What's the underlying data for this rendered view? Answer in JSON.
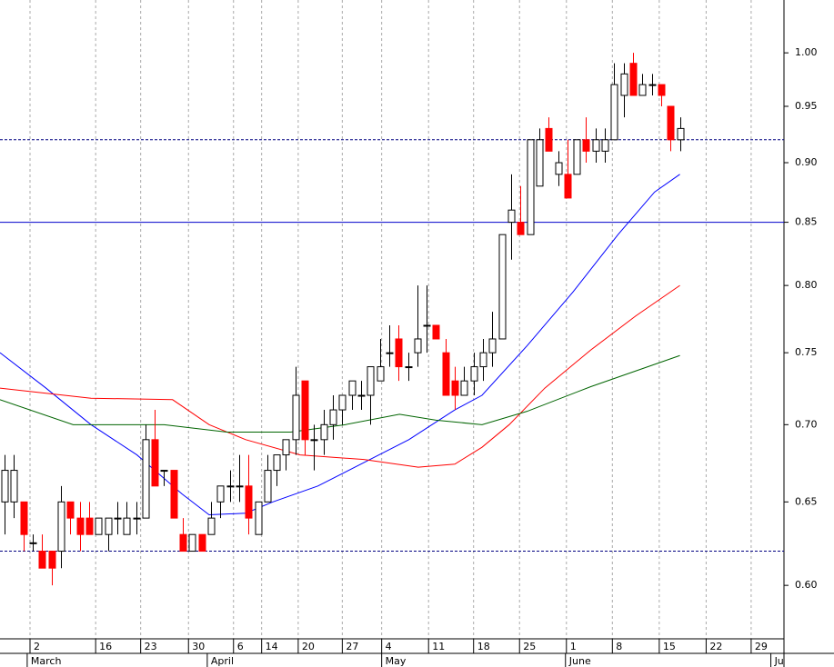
{
  "chart_data": {
    "type": "candlestick",
    "log_scale": true,
    "grid": true,
    "up_color": "#ffffff",
    "down_color": "#ff0000",
    "ylim": [
      0.57,
      1.052
    ],
    "yticks": [
      {
        "value": 0.6,
        "label": "0.60"
      },
      {
        "value": 0.65,
        "label": "0.65"
      },
      {
        "value": 0.7,
        "label": "0.70"
      },
      {
        "value": 0.75,
        "label": "0.75"
      },
      {
        "value": 0.8,
        "label": "0.80"
      },
      {
        "value": 0.85,
        "label": "0.85"
      },
      {
        "value": 0.9,
        "label": "0.90"
      },
      {
        "value": 0.95,
        "label": "0.95"
      },
      {
        "value": 1.0,
        "label": "1.00"
      }
    ],
    "xlim": [
      -0.5,
      83.1
    ],
    "xticks": [
      {
        "value": 2.7,
        "label": "2"
      },
      {
        "value": 9.7,
        "label": "16"
      },
      {
        "value": 14.5,
        "label": "23"
      },
      {
        "value": 19.6,
        "label": "30"
      },
      {
        "value": 24.4,
        "label": "6"
      },
      {
        "value": 27.4,
        "label": "14"
      },
      {
        "value": 31.3,
        "label": "20"
      },
      {
        "value": 36,
        "label": "27"
      },
      {
        "value": 40.2,
        "label": "4"
      },
      {
        "value": 45.2,
        "label": "11"
      },
      {
        "value": 50,
        "label": "18"
      },
      {
        "value": 54.9,
        "label": "25"
      },
      {
        "value": 59.9,
        "label": "1"
      },
      {
        "value": 64.8,
        "label": "8"
      },
      {
        "value": 69.8,
        "label": "15"
      },
      {
        "value": 74.8,
        "label": "22"
      },
      {
        "value": 79.6,
        "label": "29"
      }
    ],
    "month_ticks": [
      {
        "value": 2.4,
        "label": "March"
      },
      {
        "value": 21.6,
        "label": "April"
      },
      {
        "value": 40.2,
        "label": "May"
      },
      {
        "value": 59.8,
        "label": "June"
      },
      {
        "value": 81.7,
        "label": "Ju"
      }
    ],
    "open": [
      0.65,
      0.65,
      0.65,
      0.625,
      0.62,
      0.62,
      0.62,
      0.65,
      0.64,
      0.64,
      0.63,
      0.63,
      0.64,
      0.63,
      0.64,
      0.64,
      0.69,
      0.67,
      0.67,
      0.63,
      0.62,
      0.63,
      0.63,
      0.65,
      0.66,
      0.66,
      0.66,
      0.63,
      0.65,
      0.67,
      0.68,
      0.69,
      0.73,
      0.69,
      0.69,
      0.7,
      0.71,
      0.72,
      0.72,
      0.72,
      0.73,
      0.75,
      0.76,
      0.74,
      0.75,
      0.77,
      0.77,
      0.75,
      0.73,
      0.72,
      0.73,
      0.74,
      0.75,
      0.76,
      0.85,
      0.85,
      0.84,
      0.88,
      0.93,
      0.89,
      0.89,
      0.89,
      0.92,
      0.91,
      0.91,
      0.92,
      0.96,
      0.99,
      0.96,
      0.97,
      0.97,
      0.95,
      0.92
    ],
    "high": [
      0.68,
      0.68,
      0.65,
      0.63,
      0.63,
      0.62,
      0.66,
      0.65,
      0.65,
      0.65,
      0.64,
      0.64,
      0.65,
      0.65,
      0.65,
      0.7,
      0.71,
      0.67,
      0.67,
      0.64,
      0.63,
      0.63,
      0.65,
      0.66,
      0.67,
      0.68,
      0.68,
      0.65,
      0.68,
      0.68,
      0.69,
      0.74,
      0.73,
      0.7,
      0.71,
      0.72,
      0.72,
      0.73,
      0.73,
      0.74,
      0.76,
      0.77,
      0.77,
      0.75,
      0.8,
      0.8,
      0.77,
      0.76,
      0.74,
      0.74,
      0.75,
      0.76,
      0.78,
      0.84,
      0.89,
      0.88,
      0.92,
      0.93,
      0.94,
      0.91,
      0.92,
      0.92,
      0.94,
      0.93,
      0.93,
      0.99,
      0.99,
      1.0,
      0.98,
      0.98,
      0.97,
      0.95,
      0.94
    ],
    "low": [
      0.63,
      0.64,
      0.62,
      0.62,
      0.61,
      0.6,
      0.61,
      0.63,
      0.62,
      0.63,
      0.63,
      0.62,
      0.63,
      0.63,
      0.63,
      0.64,
      0.66,
      0.66,
      0.64,
      0.62,
      0.62,
      0.62,
      0.63,
      0.64,
      0.65,
      0.65,
      0.63,
      0.63,
      0.65,
      0.66,
      0.67,
      0.68,
      0.68,
      0.67,
      0.68,
      0.69,
      0.7,
      0.71,
      0.71,
      0.7,
      0.73,
      0.74,
      0.73,
      0.73,
      0.74,
      0.75,
      0.76,
      0.72,
      0.71,
      0.72,
      0.72,
      0.73,
      0.74,
      0.76,
      0.82,
      0.84,
      0.84,
      0.88,
      0.91,
      0.88,
      0.87,
      0.89,
      0.9,
      0.9,
      0.9,
      0.92,
      0.94,
      0.96,
      0.96,
      0.96,
      0.95,
      0.91,
      0.91
    ],
    "close": [
      0.67,
      0.67,
      0.63,
      0.625,
      0.61,
      0.61,
      0.65,
      0.64,
      0.63,
      0.63,
      0.64,
      0.64,
      0.64,
      0.64,
      0.64,
      0.69,
      0.66,
      0.67,
      0.64,
      0.62,
      0.63,
      0.62,
      0.64,
      0.66,
      0.66,
      0.66,
      0.64,
      0.65,
      0.67,
      0.68,
      0.69,
      0.72,
      0.69,
      0.69,
      0.7,
      0.71,
      0.72,
      0.73,
      0.72,
      0.74,
      0.74,
      0.75,
      0.74,
      0.74,
      0.76,
      0.77,
      0.76,
      0.72,
      0.72,
      0.73,
      0.74,
      0.75,
      0.76,
      0.84,
      0.86,
      0.84,
      0.92,
      0.92,
      0.91,
      0.9,
      0.87,
      0.92,
      0.91,
      0.92,
      0.92,
      0.97,
      0.98,
      0.96,
      0.97,
      0.97,
      0.96,
      0.92,
      0.93
    ],
    "lines": [
      {
        "color": "#0000ff",
        "x": [
          -0.5,
          4.4,
          9.2,
          14.1,
          18.9,
          21.8,
          25.7,
          28.6,
          33.4,
          38.3,
          43.1,
          48,
          50.9,
          55.7,
          60.6,
          65.4,
          69.3,
          72
        ],
        "values": [
          0.75,
          0.725,
          0.7,
          0.68,
          0.655,
          0.642,
          0.643,
          0.65,
          0.66,
          0.675,
          0.69,
          0.71,
          0.72,
          0.755,
          0.795,
          0.84,
          0.875,
          0.89
        ]
      },
      {
        "color": "#ff0000",
        "x": [
          -0.5,
          9.2,
          17.9,
          21.8,
          25.7,
          31.5,
          38.3,
          44.1,
          48,
          50.9,
          53.8,
          57.6,
          62.5,
          67.3,
          72
        ],
        "values": [
          0.725,
          0.718,
          0.717,
          0.7,
          0.69,
          0.68,
          0.677,
          0.672,
          0.674,
          0.685,
          0.7,
          0.725,
          0.752,
          0.777,
          0.8
        ]
      },
      {
        "color": "#006400",
        "x": [
          -0.5,
          7.3,
          17,
          23.7,
          30.5,
          36.3,
          42.1,
          46,
          50.9,
          55.7,
          62.5,
          72
        ],
        "values": [
          0.717,
          0.7,
          0.7,
          0.695,
          0.695,
          0.7,
          0.707,
          0.703,
          0.7,
          0.709,
          0.726,
          0.748
        ]
      }
    ],
    "hlines": [
      {
        "value": 0.85,
        "color": "#0000cc",
        "style": "solid"
      },
      {
        "value": 0.92,
        "color": "#000080",
        "style": "dashed"
      },
      {
        "value": 0.62,
        "color": "#000080",
        "style": "dashed"
      }
    ]
  }
}
